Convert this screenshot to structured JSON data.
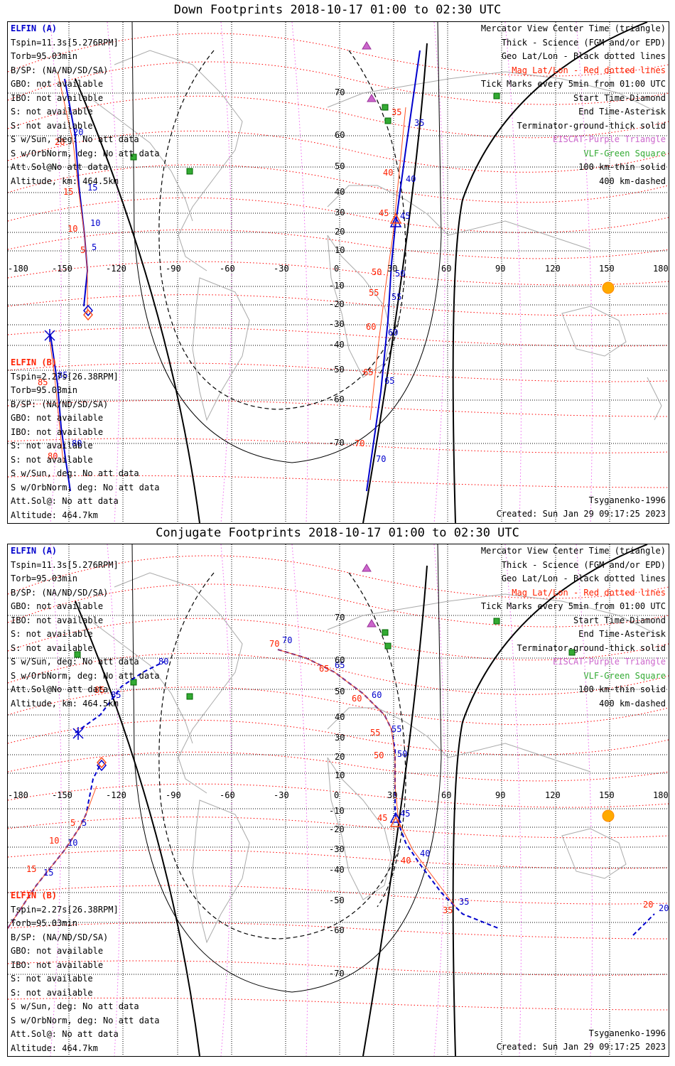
{
  "panels": [
    {
      "key": "down",
      "title": "Down Footprints 2018-10-17 01:00 to 02:30 UTC",
      "elfin_a": {
        "name": "ELFIN (A)",
        "lines": [
          "Tspin=11.3s[5.276RPM]",
          "Torb=95.03min",
          "B/SP: (NA/ND/SD/SA)",
          "GBO: not available",
          "IBO: not available",
          "S: not available",
          "S: not available",
          "S w/Sun, deg: No att data",
          "S w/OrbNorm, deg: No att data",
          "Att.Sol@No att data",
          "Altitude, km: 464.5km"
        ]
      },
      "elfin_b": {
        "name": "ELFIN (B)",
        "lines": [
          "Tspin=2.27s[26.38RPM]",
          "Torb=95.03min",
          "B/SP: (NA/ND/SD/SA)",
          "GBO: not available",
          "IBO: not available",
          "S: not available",
          "S: not available",
          "S w/Sun, deg: No att data",
          "S w/OrbNorm, deg: No att data",
          "Att.Sol@: No att data",
          "Altitude: 464.7km"
        ]
      },
      "model": "Tsyganenko-1996",
      "created": "Created: Sun Jan 29 09:17:25 2023",
      "lat_labels": [
        "70",
        "60",
        "50",
        "40",
        "30",
        "20",
        "10",
        "-10",
        "-20",
        "-30",
        "-40",
        "-50",
        "-60",
        "-70"
      ],
      "a_ticks": [
        {
          "t": "15",
          "c": "blue"
        },
        {
          "t": "20",
          "c": "blue"
        },
        {
          "t": "10",
          "c": "blue"
        },
        {
          "t": "5",
          "c": "blue"
        },
        {
          "t": "35",
          "c": "blue"
        },
        {
          "t": "40",
          "c": "blue"
        },
        {
          "t": "45",
          "c": "blue"
        },
        {
          "t": "50",
          "c": "blue"
        },
        {
          "t": "55",
          "c": "blue"
        },
        {
          "t": "60",
          "c": "blue"
        },
        {
          "t": "65",
          "c": "blue"
        },
        {
          "t": "70",
          "c": "blue"
        }
      ],
      "b_ticks": [
        {
          "t": "20",
          "c": "red"
        },
        {
          "t": "15",
          "c": "red"
        },
        {
          "t": "10",
          "c": "red"
        },
        {
          "t": "5",
          "c": "red"
        },
        {
          "t": "35",
          "c": "red"
        },
        {
          "t": "40",
          "c": "red"
        },
        {
          "t": "45",
          "c": "red"
        },
        {
          "t": "50",
          "c": "red"
        },
        {
          "t": "55",
          "c": "red"
        },
        {
          "t": "60",
          "c": "red"
        },
        {
          "t": "65",
          "c": "red"
        },
        {
          "t": "70",
          "c": "red"
        },
        {
          "t": "85",
          "c": "red"
        },
        {
          "t": "80",
          "c": "red"
        }
      ],
      "extra_ticks": [
        {
          "t": "85",
          "c": "blue"
        },
        {
          "t": "80",
          "c": "blue"
        }
      ]
    },
    {
      "key": "conj",
      "title": "Conjugate Footprints 2018-10-17 01:00 to 02:30 UTC",
      "elfin_a": {
        "name": "ELFIN (A)",
        "lines": [
          "Tspin=11.3s[5.276RPM]",
          "Torb=95.03min",
          "B/SP: (NA/ND/SD/SA)",
          "GBO: not available",
          "IBO: not available",
          "S: not available",
          "S: not available",
          "S w/Sun, deg: No att data",
          "S w/OrbNorm, deg: No att data",
          "Att.Sol@No att data",
          "Altitude, km: 464.5km"
        ]
      },
      "elfin_b": {
        "name": "ELFIN (B)",
        "lines": [
          "Tspin=2.27s[26.38RPM]",
          "Torb=95.03min",
          "B/SP: (NA/ND/SD/SA)",
          "GBO: not available",
          "IBO: not available",
          "S: not available",
          "S: not available",
          "S w/Sun, deg: No att data",
          "S w/OrbNorm, deg: No att data",
          "Att.Sol@: No att data",
          "Altitude: 464.7km"
        ]
      },
      "model": "Tsyganenko-1996",
      "created": "Created: Sun Jan 29 09:17:25 2023",
      "lat_labels": [
        "70",
        "60",
        "50",
        "40",
        "30",
        "20",
        "10",
        "-10",
        "-20",
        "-30",
        "-40",
        "-50",
        "-60",
        "-70"
      ],
      "a_ticks": [
        {
          "t": "70",
          "c": "blue"
        },
        {
          "t": "65",
          "c": "blue"
        },
        {
          "t": "60",
          "c": "blue"
        },
        {
          "t": "55",
          "c": "blue"
        },
        {
          "t": "50",
          "c": "blue"
        },
        {
          "t": "45",
          "c": "blue"
        },
        {
          "t": "40",
          "c": "blue"
        },
        {
          "t": "35",
          "c": "blue"
        },
        {
          "t": "20",
          "c": "blue"
        },
        {
          "t": "15",
          "c": "blue"
        },
        {
          "t": "10",
          "c": "blue"
        },
        {
          "t": "5",
          "c": "blue"
        },
        {
          "t": "80",
          "c": "blue"
        },
        {
          "t": "85",
          "c": "blue"
        }
      ],
      "b_ticks": [
        {
          "t": "70",
          "c": "red"
        },
        {
          "t": "65",
          "c": "red"
        },
        {
          "t": "60",
          "c": "red"
        },
        {
          "t": "55",
          "c": "red"
        },
        {
          "t": "50",
          "c": "red"
        },
        {
          "t": "45",
          "c": "red"
        },
        {
          "t": "40",
          "c": "red"
        },
        {
          "t": "35",
          "c": "red"
        },
        {
          "t": "20",
          "c": "red"
        },
        {
          "t": "15",
          "c": "red"
        },
        {
          "t": "10",
          "c": "red"
        },
        {
          "t": "5",
          "c": "red"
        },
        {
          "t": "85",
          "c": "red"
        }
      ],
      "extra_ticks": []
    }
  ],
  "lon_labels": [
    "-180",
    "-150",
    "-120",
    "-90",
    "-60",
    "-30",
    "0",
    "30",
    "60",
    "90",
    "120",
    "150",
    "180"
  ],
  "legend": [
    {
      "text": "Mercator View Center Time (triangle)",
      "color": "#000000"
    },
    {
      "text": "Thick - Science (FGM and/or EPD)",
      "color": "#000000"
    },
    {
      "text": "Geo Lat/Lon - Black dotted lines",
      "color": "#000000"
    },
    {
      "text": "Mag Lat/Lon - Red dotted lines",
      "color": "#ff2000"
    },
    {
      "text": "Tick Marks every 5min from 01:00 UTC",
      "color": "#000000"
    },
    {
      "text": "Start Time-Diamond",
      "color": "#000000"
    },
    {
      "text": "End Time-Asterisk",
      "color": "#000000"
    },
    {
      "text": "Terminator-ground-thick solid",
      "color": "#000000"
    },
    {
      "text": "EISCAT-Purple Triangle",
      "color": "#cc66cc"
    },
    {
      "text": "VLF-Green Square",
      "color": "#33aa33"
    },
    {
      "text": "100 km-thin solid",
      "color": "#000000"
    },
    {
      "text": "400 km-dashed",
      "color": "#000000"
    }
  ],
  "colors": {
    "trace_a": "#0000cc",
    "trace_b": "#ff5020",
    "mag_grid": "#ff0000",
    "geo_grid": "#000000",
    "eiscat": "#cc66cc",
    "vlf": "#33aa33",
    "sun": "#ffaa00"
  }
}
